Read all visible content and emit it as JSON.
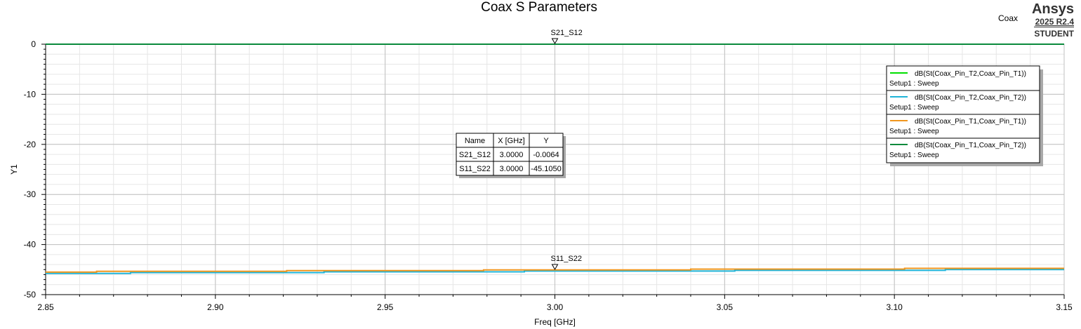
{
  "title": "Coax S Parameters",
  "project_label": "Coax",
  "brand": {
    "name": "Ansys",
    "version": "2025 R2.4",
    "edition": "STUDENT"
  },
  "chart_data": {
    "type": "line",
    "title": "Coax S Parameters",
    "xlabel": "Freq [GHz]",
    "ylabel": "Y1",
    "xlim": [
      2.85,
      3.15
    ],
    "ylim": [
      -50,
      0
    ],
    "xticks": [
      "2.85",
      "2.90",
      "2.95",
      "3.00",
      "3.05",
      "3.10",
      "3.15"
    ],
    "yticks": [
      "0",
      "-10",
      "-20",
      "-30",
      "-40",
      "-50"
    ],
    "grid": true,
    "legend_position": "top-right",
    "series": [
      {
        "name": "dB(St(Coax_Pin_T2,Coax_Pin_T1))",
        "setup": "Setup1 : Sweep",
        "color": "#00e000",
        "x": [
          2.85,
          3.15
        ],
        "y": [
          -0.0064,
          -0.0064
        ]
      },
      {
        "name": "dB(St(Coax_Pin_T2,Coax_Pin_T2))",
        "setup": "Setup1 : Sweep",
        "color": "#1fb4d8",
        "x": [
          2.85,
          2.875,
          2.875,
          2.932,
          2.932,
          2.991,
          2.991,
          3.053,
          3.053,
          3.115,
          3.115,
          3.15
        ],
        "y": [
          -45.75,
          -45.75,
          -45.6,
          -45.6,
          -45.45,
          -45.45,
          -45.3,
          -45.3,
          -45.15,
          -45.15,
          -45.0,
          -45.0
        ]
      },
      {
        "name": "dB(St(Coax_Pin_T1,Coax_Pin_T1))",
        "setup": "Setup1 : Sweep",
        "color": "#f0961e",
        "x": [
          2.85,
          2.865,
          2.865,
          2.921,
          2.921,
          2.979,
          2.979,
          3.04,
          3.04,
          3.103,
          3.103,
          3.15
        ],
        "y": [
          -45.5,
          -45.5,
          -45.35,
          -45.35,
          -45.2,
          -45.2,
          -45.05,
          -45.05,
          -44.9,
          -44.9,
          -44.75,
          -44.75
        ]
      },
      {
        "name": "dB(St(Coax_Pin_T1,Coax_Pin_T2))",
        "setup": "Setup1 : Sweep",
        "color": "#0a8a3c",
        "x": [
          2.85,
          3.15
        ],
        "y": [
          -0.0064,
          -0.0064
        ]
      }
    ],
    "markers": [
      {
        "name": "S21_S12",
        "x": 3.0,
        "y": -0.0064
      },
      {
        "name": "S11_S22",
        "x": 3.0,
        "y": -45.105
      }
    ],
    "marker_table": {
      "headers": [
        "Name",
        "X [GHz]",
        "Y"
      ],
      "rows": [
        [
          "S21_S12",
          "3.0000",
          "-0.0064"
        ],
        [
          "S11_S22",
          "3.0000",
          "-45.1050"
        ]
      ]
    }
  }
}
